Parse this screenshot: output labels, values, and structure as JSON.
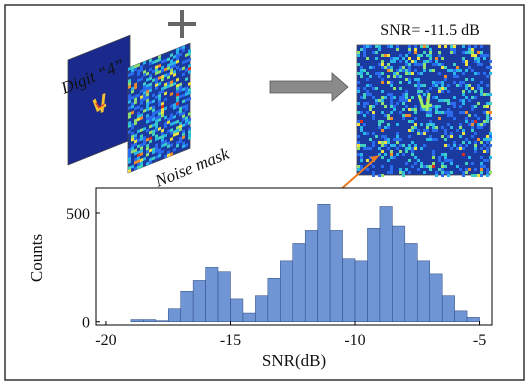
{
  "chart_data": {
    "type": "histogram",
    "digit_label": "Digit “4”",
    "noise_label": "Noise mask",
    "snr_label": "SNR= -11.5 dB",
    "xlabel": "SNR(dB)",
    "ylabel": "Counts",
    "bins": [
      -19,
      -18.5,
      -18,
      -17.5,
      -17,
      -16.5,
      -16,
      -15.5,
      -15,
      -14.5,
      -14,
      -13.5,
      -13,
      -12.5,
      -12,
      -11.5,
      -11,
      -10.5,
      -10,
      -9.5,
      -9,
      -8.5,
      -8,
      -7.5,
      -7,
      -6.5,
      -6,
      -5.5,
      -5
    ],
    "values": [
      10,
      10,
      5,
      60,
      140,
      190,
      250,
      230,
      105,
      40,
      120,
      200,
      280,
      360,
      420,
      540,
      420,
      290,
      280,
      430,
      530,
      440,
      360,
      280,
      220,
      120,
      50,
      20
    ],
    "color": "#7095d4",
    "xlim": [
      -20.4,
      -4.5
    ],
    "xticks": [
      -20,
      -15,
      -10,
      -5
    ],
    "ylim": [
      -15,
      615
    ],
    "yticks": [
      0,
      500
    ]
  }
}
